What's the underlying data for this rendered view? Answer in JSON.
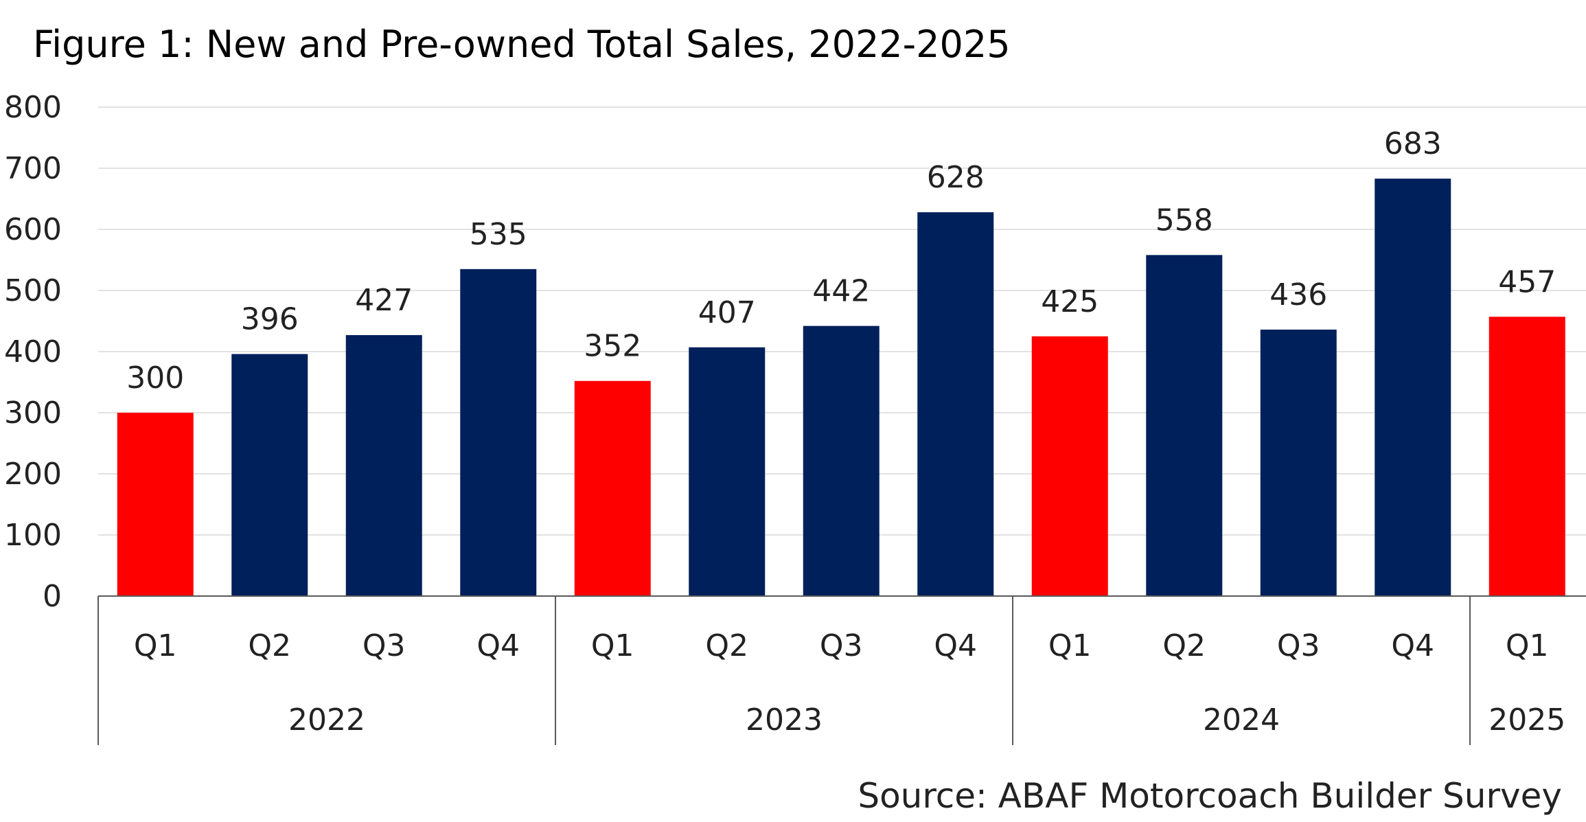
{
  "title": "Figure 1: New and Pre-owned Total Sales, 2022-2025",
  "source": "Source: ABAF Motorcoach Builder Survey",
  "colors": {
    "q1": "#ff0000",
    "other": "#00205b"
  },
  "chart_data": {
    "type": "bar",
    "title": "Figure 1: New and Pre-owned Total Sales, 2022-2025",
    "xlabel": "",
    "ylabel": "",
    "ylim": [
      0,
      800
    ],
    "yticks": [
      0,
      100,
      200,
      300,
      400,
      500,
      600,
      700,
      800
    ],
    "grid": true,
    "categories": [
      "Q1",
      "Q2",
      "Q3",
      "Q4",
      "Q1",
      "Q2",
      "Q3",
      "Q4",
      "Q1",
      "Q2",
      "Q3",
      "Q4",
      "Q1"
    ],
    "groups": [
      {
        "label": "2022",
        "count": 4
      },
      {
        "label": "2023",
        "count": 4
      },
      {
        "label": "2024",
        "count": 4
      },
      {
        "label": "2025",
        "count": 1
      }
    ],
    "values": [
      300,
      396,
      427,
      535,
      352,
      407,
      442,
      628,
      425,
      558,
      436,
      683,
      457
    ],
    "bar_colors": [
      "#ff0000",
      "#00205b",
      "#00205b",
      "#00205b",
      "#ff0000",
      "#00205b",
      "#00205b",
      "#00205b",
      "#ff0000",
      "#00205b",
      "#00205b",
      "#00205b",
      "#ff0000"
    ]
  }
}
